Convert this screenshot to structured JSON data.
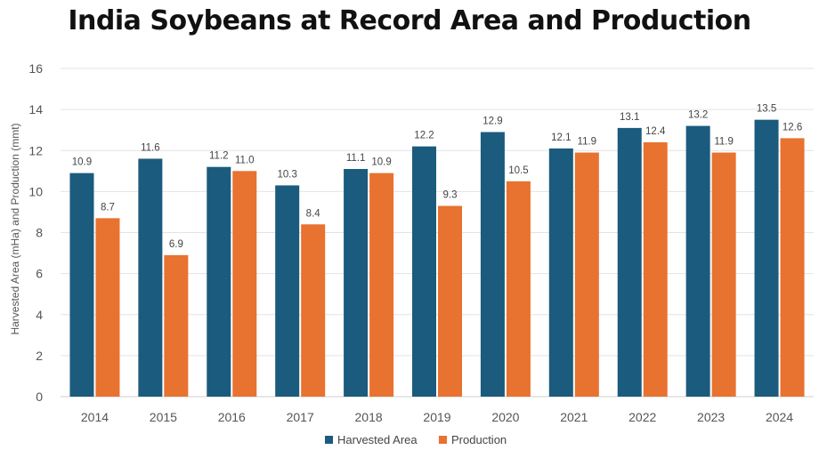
{
  "chart_data": {
    "type": "bar",
    "title": "India Soybeans at Record Area and Production",
    "xlabel": "",
    "ylabel": "Harvested Area (mHa) and Production (mmt)",
    "categories": [
      "2014",
      "2015",
      "2016",
      "2017",
      "2018",
      "2019",
      "2020",
      "2021",
      "2022",
      "2023",
      "2024"
    ],
    "series": [
      {
        "name": "Harvested Area",
        "color": "#1b5b7e",
        "values": [
          10.9,
          11.6,
          11.2,
          10.3,
          11.1,
          12.2,
          12.9,
          12.1,
          13.1,
          13.2,
          13.5
        ]
      },
      {
        "name": "Production",
        "color": "#e8722f",
        "values": [
          8.7,
          6.9,
          11.0,
          8.4,
          10.9,
          9.3,
          10.5,
          11.9,
          12.4,
          11.9,
          12.6
        ]
      }
    ],
    "data_labels": [
      [
        "10.9",
        "11.6",
        "11.2",
        "10.3",
        "11.1",
        "12.2",
        "12.9",
        "12.1",
        "13.1",
        "13.2",
        "13.5"
      ],
      [
        "8.7",
        "6.9",
        "11.0",
        "8.4",
        "10.9",
        "9.3",
        "10.5",
        "11.9",
        "12.4",
        "11.9",
        "12.6"
      ]
    ],
    "ylim": [
      0,
      16
    ],
    "yticks": [
      "0",
      "2",
      "4",
      "6",
      "8",
      "10",
      "12",
      "14",
      "16"
    ],
    "grid": true,
    "legend_position": "bottom"
  }
}
